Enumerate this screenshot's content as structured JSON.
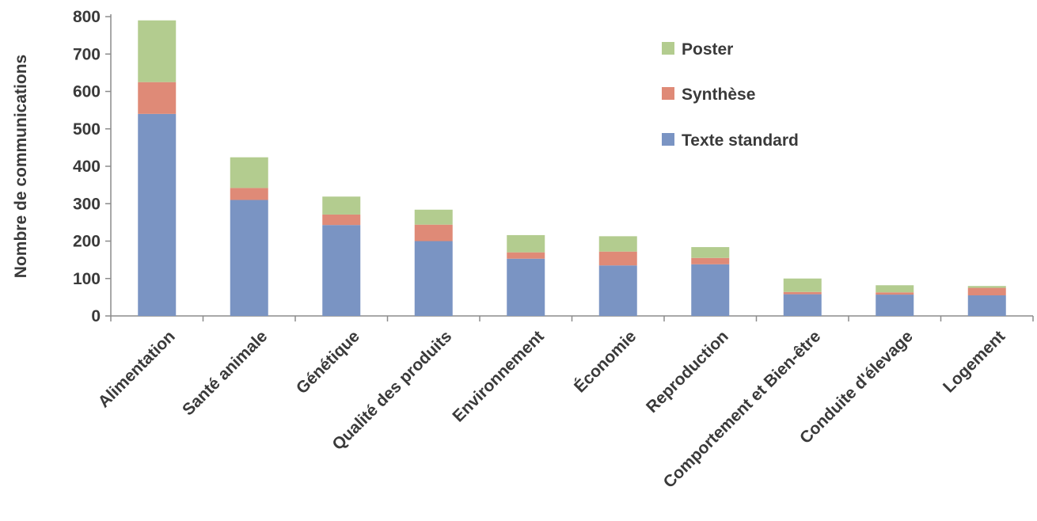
{
  "chart_data": {
    "type": "bar",
    "stacked": true,
    "title": "",
    "xlabel": "",
    "ylabel": "Nombre de communications",
    "ylim": [
      0,
      800
    ],
    "yticks": [
      0,
      100,
      200,
      300,
      400,
      500,
      600,
      700,
      800
    ],
    "grid": false,
    "legend_position": "top-right",
    "categories": [
      "Alimentation",
      "Santé animale",
      "Génétique",
      "Qualité des produits",
      "Environnement",
      "Économie",
      "Reproduction",
      "Comportement et Bien-être",
      "Conduite d'élevage",
      "Logement"
    ],
    "series": [
      {
        "name": "Texte standard",
        "color": "#7a94c3",
        "values": [
          540,
          310,
          243,
          200,
          153,
          135,
          138,
          58,
          57,
          55
        ]
      },
      {
        "name": "Synthèse",
        "color": "#df8a77",
        "values": [
          85,
          32,
          28,
          44,
          17,
          37,
          17,
          6,
          6,
          20
        ]
      },
      {
        "name": "Poster",
        "color": "#b3cc8f",
        "values": [
          165,
          82,
          48,
          40,
          46,
          41,
          29,
          36,
          19,
          5
        ]
      }
    ],
    "legend_order": [
      "Poster",
      "Synthèse",
      "Texte standard"
    ]
  }
}
